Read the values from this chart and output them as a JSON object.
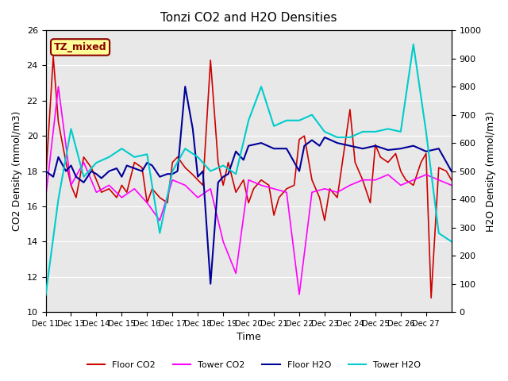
{
  "title": "Tonzi CO2 and H2O Densities",
  "xlabel": "Time",
  "ylabel_left": "CO2 Density (mmol/m3)",
  "ylabel_right": "H2O Density (mmol/m3)",
  "annotation_text": "TZ_mixed",
  "annotation_color": "#8B0000",
  "annotation_bg": "#FFFF99",
  "annotation_border": "#8B0000",
  "x_tick_labels": [
    "Dec 11",
    "Dec 13",
    "Dec 14",
    "Dec 15",
    "Dec 16",
    "Dec 17",
    "Dec 18",
    "Dec 19",
    "Dec 20",
    "Dec 21",
    "Dec 22",
    "Dec 23",
    "Dec 24",
    "Dec 25",
    "Dec 26",
    "Dec 27"
  ],
  "ylim_left": [
    10,
    26
  ],
  "ylim_right": [
    0,
    1000
  ],
  "yticks_left": [
    10,
    12,
    14,
    16,
    18,
    20,
    22,
    24,
    26
  ],
  "yticks_right": [
    0,
    100,
    200,
    300,
    400,
    500,
    600,
    700,
    800,
    900,
    1000
  ],
  "colors": {
    "floor_co2": "#CC0000",
    "tower_co2": "#FF00FF",
    "floor_h2o": "#000099",
    "tower_h2o": "#00CCCC"
  },
  "legend_labels": [
    "Floor CO2",
    "Tower CO2",
    "Floor H2O",
    "Tower H2O"
  ],
  "background_color": "#E8E8E8",
  "floor_co2_x": [
    0,
    0.3,
    0.5,
    0.8,
    1.0,
    1.2,
    1.5,
    1.8,
    2.0,
    2.2,
    2.5,
    2.8,
    3.0,
    3.2,
    3.5,
    3.8,
    4.0,
    4.2,
    4.5,
    4.8,
    5.0,
    5.2,
    5.5,
    5.8,
    6.0,
    6.2,
    6.5,
    6.8,
    7.0,
    7.2,
    7.5,
    7.8,
    8.0,
    8.2,
    8.5,
    8.8,
    9.0,
    9.2,
    9.5,
    9.8,
    10.0,
    10.2,
    10.5,
    10.8,
    11.0,
    11.2,
    11.5,
    11.8,
    12.0,
    12.2,
    12.5,
    12.8,
    13.0,
    13.2,
    13.5,
    13.8,
    14.0,
    14.2,
    14.5,
    14.8,
    15.0,
    15.2,
    15.5,
    15.8,
    16.0
  ],
  "floor_co2_y": [
    17.5,
    24.5,
    20.8,
    18.5,
    17.2,
    16.5,
    18.8,
    18.2,
    17.5,
    16.8,
    17.0,
    16.5,
    17.2,
    16.8,
    18.5,
    18.2,
    16.2,
    17.0,
    16.5,
    16.2,
    18.5,
    18.8,
    18.2,
    17.8,
    17.5,
    17.2,
    24.3,
    18.5,
    17.2,
    18.5,
    16.8,
    17.5,
    16.2,
    17.0,
    17.5,
    17.2,
    15.5,
    16.5,
    17.0,
    17.2,
    19.8,
    20.0,
    17.5,
    16.5,
    15.2,
    17.0,
    16.5,
    19.5,
    21.5,
    18.5,
    17.5,
    16.2,
    19.5,
    18.8,
    18.5,
    19.0,
    18.0,
    17.5,
    17.2,
    18.5,
    19.0,
    10.8,
    18.2,
    18.0,
    17.5
  ],
  "tower_co2_x": [
    0,
    0.5,
    1.0,
    1.5,
    2.0,
    2.5,
    3.0,
    3.5,
    4.0,
    4.5,
    5.0,
    5.5,
    6.0,
    6.5,
    7.0,
    7.5,
    8.0,
    8.5,
    9.0,
    9.5,
    10.0,
    10.5,
    11.0,
    11.5,
    12.0,
    12.5,
    13.0,
    13.5,
    14.0,
    14.5,
    15.0,
    15.5,
    16.0
  ],
  "tower_co2_y": [
    16.5,
    22.8,
    17.2,
    18.5,
    16.8,
    17.2,
    16.5,
    17.0,
    16.2,
    15.2,
    17.5,
    17.2,
    16.5,
    17.0,
    14.0,
    12.2,
    17.5,
    17.2,
    17.0,
    16.8,
    11.0,
    16.8,
    17.0,
    16.8,
    17.2,
    17.5,
    17.5,
    17.8,
    17.2,
    17.5,
    17.8,
    17.5,
    17.2
  ],
  "floor_h2o_x": [
    0,
    0.3,
    0.5,
    0.8,
    1.0,
    1.2,
    1.5,
    1.8,
    2.0,
    2.2,
    2.5,
    2.8,
    3.0,
    3.2,
    3.5,
    3.8,
    4.0,
    4.2,
    4.5,
    4.8,
    5.0,
    5.2,
    5.5,
    5.8,
    6.0,
    6.2,
    6.5,
    6.8,
    7.0,
    7.2,
    7.5,
    7.8,
    8.0,
    8.5,
    9.0,
    9.5,
    10.0,
    10.2,
    10.5,
    10.8,
    11.0,
    11.5,
    12.0,
    12.5,
    13.0,
    13.5,
    14.0,
    14.5,
    15.0,
    15.5,
    16.0
  ],
  "floor_h2o_y": [
    500,
    480,
    550,
    500,
    520,
    480,
    460,
    500,
    490,
    475,
    500,
    510,
    480,
    520,
    510,
    500,
    530,
    520,
    480,
    490,
    490,
    500,
    800,
    650,
    480,
    500,
    100,
    460,
    480,
    490,
    570,
    540,
    590,
    600,
    580,
    580,
    500,
    590,
    610,
    590,
    620,
    600,
    590,
    580,
    590,
    575,
    580,
    590,
    570,
    580,
    500
  ],
  "tower_h2o_x": [
    0,
    0.5,
    1.0,
    1.5,
    2.0,
    2.5,
    3.0,
    3.5,
    4.0,
    4.5,
    5.0,
    5.5,
    6.0,
    6.5,
    7.0,
    7.5,
    8.0,
    8.5,
    9.0,
    9.5,
    10.0,
    10.5,
    11.0,
    11.5,
    12.0,
    12.5,
    13.0,
    13.5,
    14.0,
    14.5,
    15.0,
    15.5,
    16.0
  ],
  "tower_h2o_y": [
    60,
    400,
    650,
    480,
    530,
    550,
    580,
    550,
    560,
    280,
    500,
    580,
    550,
    500,
    520,
    490,
    680,
    800,
    660,
    680,
    680,
    700,
    640,
    620,
    620,
    640,
    640,
    650,
    640,
    950,
    640,
    280,
    250
  ]
}
